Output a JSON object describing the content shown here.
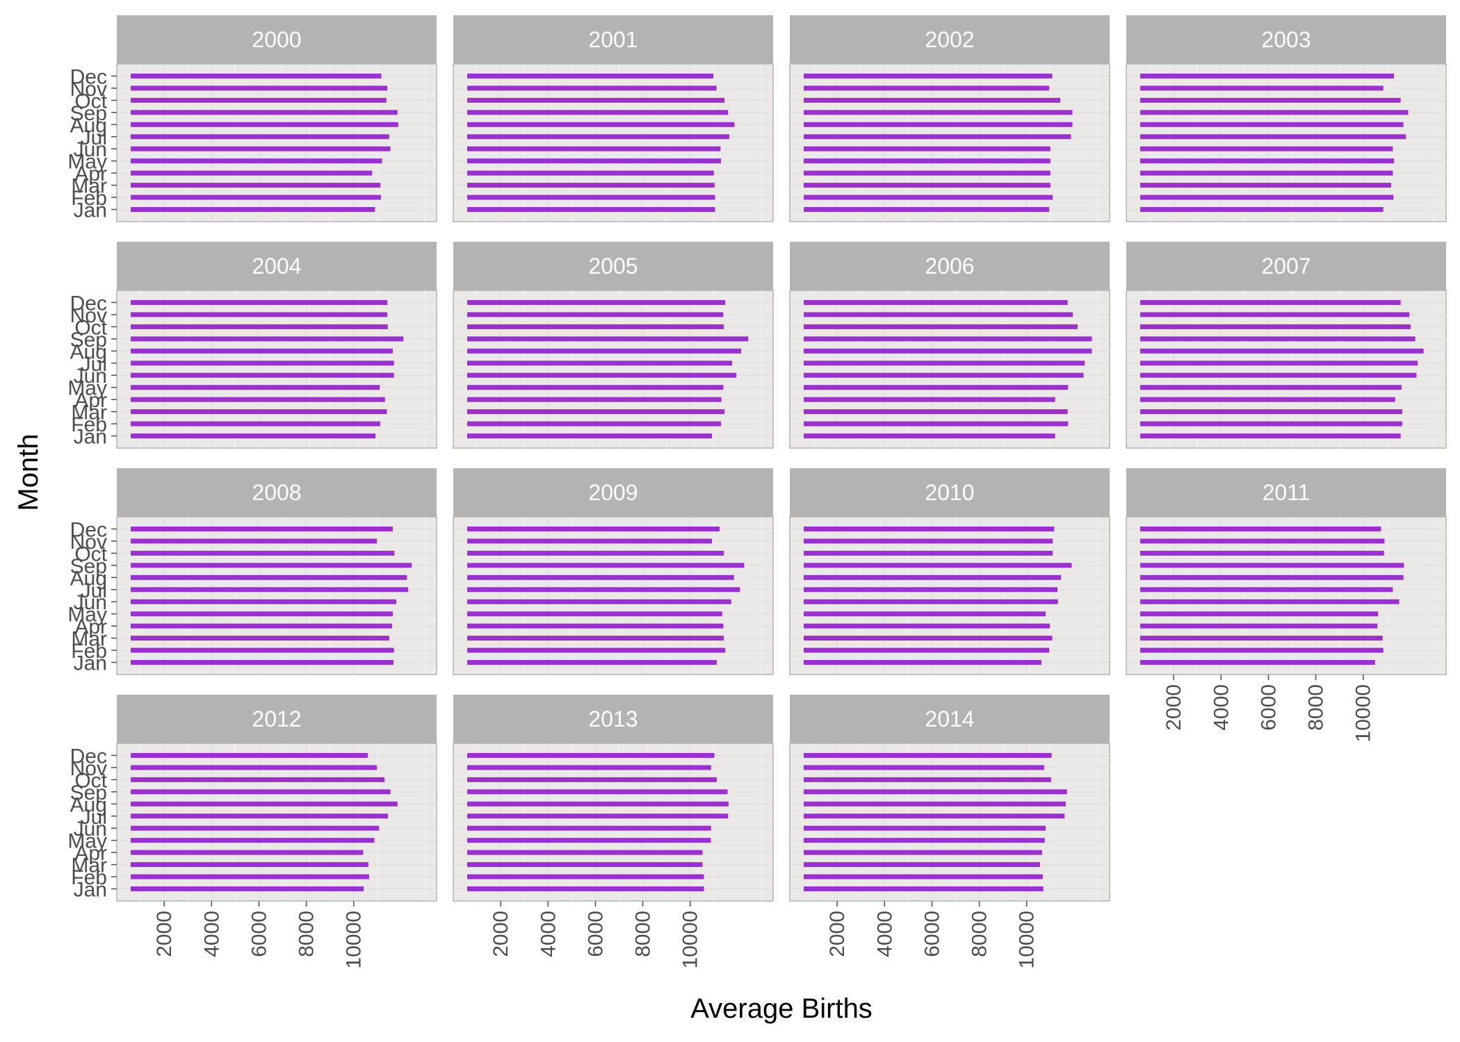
{
  "chart_data": {
    "type": "bar",
    "orientation": "horizontal",
    "facet_by": "year",
    "xlabel": "Average Births",
    "ylabel": "Month",
    "x_ticks": [
      2000,
      4000,
      6000,
      8000,
      10000
    ],
    "xlim": [
      0,
      13500
    ],
    "categories": [
      "Jan",
      "Feb",
      "Mar",
      "Apr",
      "May",
      "Jun",
      "Jul",
      "Aug",
      "Sep",
      "Oct",
      "Nov",
      "Dec"
    ],
    "bar_color": "#9932cc",
    "panels": [
      {
        "year": "2000",
        "values": [
          10900,
          11150,
          11130,
          10780,
          11200,
          11550,
          11500,
          11880,
          11850,
          11380,
          11420,
          11170
        ]
      },
      {
        "year": "2001",
        "values": [
          11050,
          11050,
          11030,
          11000,
          11300,
          11280,
          11650,
          11870,
          11600,
          11450,
          11110,
          10980
        ]
      },
      {
        "year": "2002",
        "values": [
          10950,
          11100,
          11000,
          11000,
          11000,
          11000,
          11870,
          11930,
          11930,
          11420,
          10950,
          11080
        ]
      },
      {
        "year": "2003",
        "values": [
          10850,
          11280,
          11180,
          11250,
          11300,
          11250,
          11800,
          11700,
          11900,
          11580,
          10850,
          11300
        ]
      },
      {
        "year": "2004",
        "values": [
          10920,
          11120,
          11400,
          11320,
          11100,
          11700,
          11700,
          11650,
          12100,
          11440,
          11420,
          11420
        ]
      },
      {
        "year": "2005",
        "values": [
          10920,
          11300,
          11450,
          11320,
          11400,
          11950,
          11770,
          12150,
          12450,
          11420,
          11400,
          11480
        ]
      },
      {
        "year": "2006",
        "values": [
          11200,
          11750,
          11730,
          11200,
          11750,
          12400,
          12450,
          12750,
          12750,
          12150,
          11950,
          11730
        ]
      },
      {
        "year": "2007",
        "values": [
          11580,
          11650,
          11650,
          11350,
          11620,
          12250,
          12300,
          12550,
          12200,
          12000,
          11950,
          11580
        ]
      },
      {
        "year": "2008",
        "values": [
          11680,
          11700,
          11500,
          11620,
          11650,
          11800,
          12300,
          12250,
          12450,
          11720,
          10980,
          11650
        ]
      },
      {
        "year": "2009",
        "values": [
          11120,
          11480,
          11420,
          11400,
          11350,
          11730,
          12100,
          11850,
          12280,
          11420,
          10920,
          11240
        ]
      },
      {
        "year": "2010",
        "values": [
          10620,
          10950,
          11080,
          10980,
          10800,
          11320,
          11300,
          11450,
          11900,
          11100,
          11100,
          11160
        ]
      },
      {
        "year": "2011",
        "values": [
          10500,
          10850,
          10820,
          10600,
          10630,
          11520,
          11250,
          11700,
          11720,
          10880,
          10900,
          10750
        ]
      },
      {
        "year": "2012",
        "values": [
          10420,
          10650,
          10620,
          10400,
          10870,
          11070,
          11450,
          11850,
          11550,
          11300,
          10980,
          10600
        ]
      },
      {
        "year": "2013",
        "values": [
          10580,
          10580,
          10520,
          10520,
          10870,
          10880,
          11600,
          11620,
          11580,
          11120,
          10880,
          11020
        ]
      },
      {
        "year": "2014",
        "values": [
          10700,
          10680,
          10560,
          10650,
          10760,
          10800,
          11600,
          11650,
          11700,
          11030,
          10740,
          11050
        ]
      }
    ]
  }
}
